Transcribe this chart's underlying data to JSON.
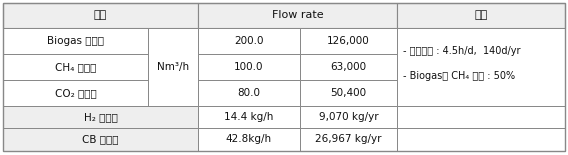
{
  "header_col1": "구분",
  "header_col2": "Flow rate",
  "header_col3": "비고",
  "row1_name": "Biogas 유입량",
  "row2_name": "CH₄ 유입량",
  "row3_name": "CO₂ 유입량",
  "row4_name": "H₂ 생산량",
  "row5_name": "CB 생산량",
  "unit": "Nm³/h",
  "row1_v1": "200.0",
  "row1_v2": "126,000",
  "row2_v1": "100.0",
  "row2_v2": "63,000",
  "row3_v1": "80.0",
  "row3_v2": "50,400",
  "row4_v1": "14.4 kg/h",
  "row4_v2": "9,070 kg/yr",
  "row5_v1": "42.8kg/h",
  "row5_v2": "26,967 kg/yr",
  "note1": "- 운전시간 : 4.5h/d,  140d/yr",
  "note2": "- Biogas의 CH₄ 비율 : 50%",
  "bg_header": "#eeeeee",
  "bg_white": "#ffffff",
  "border_color": "#888888",
  "text_color": "#111111",
  "font_size": 7.5,
  "header_font_size": 8.0
}
